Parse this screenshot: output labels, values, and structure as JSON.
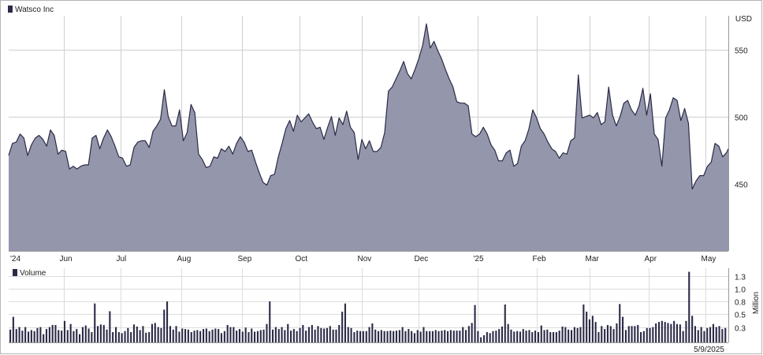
{
  "chart_data": [
    {
      "type": "area",
      "legend": "Watsco Inc",
      "unit_label": "USD",
      "color_fill": "#9496ab",
      "color_line": "#2b2b48",
      "ylim": [
        400,
        575
      ],
      "y_ticks": [
        "450",
        "500",
        "550"
      ],
      "y_tick_values": [
        450,
        500,
        550
      ],
      "x_ticks": [
        "'24",
        "Jun",
        "Jul",
        "Aug",
        "Sep",
        "Oct",
        "Nov",
        "Dec",
        "'25",
        "Feb",
        "Mar",
        "Apr",
        "May"
      ],
      "x_tick_days": [
        0,
        29,
        59,
        91,
        123,
        153,
        186,
        216,
        247,
        278,
        306,
        337,
        367
      ],
      "points": [
        [
          0,
          471
        ],
        [
          2,
          480
        ],
        [
          4,
          481
        ],
        [
          6,
          487
        ],
        [
          8,
          484
        ],
        [
          10,
          471
        ],
        [
          12,
          479
        ],
        [
          14,
          484
        ],
        [
          16,
          486
        ],
        [
          18,
          483
        ],
        [
          20,
          478
        ],
        [
          22,
          490
        ],
        [
          24,
          486
        ],
        [
          26,
          472
        ],
        [
          28,
          475
        ],
        [
          30,
          474
        ],
        [
          32,
          461
        ],
        [
          34,
          463
        ],
        [
          36,
          461
        ],
        [
          38,
          463
        ],
        [
          40,
          464
        ],
        [
          42,
          464
        ],
        [
          44,
          484
        ],
        [
          46,
          486
        ],
        [
          48,
          476
        ],
        [
          50,
          484
        ],
        [
          52,
          490
        ],
        [
          54,
          485
        ],
        [
          56,
          478
        ],
        [
          58,
          470
        ],
        [
          60,
          469
        ],
        [
          62,
          463
        ],
        [
          64,
          464
        ],
        [
          66,
          477
        ],
        [
          68,
          481
        ],
        [
          70,
          482
        ],
        [
          72,
          482
        ],
        [
          74,
          477
        ],
        [
          76,
          489
        ],
        [
          78,
          493
        ],
        [
          80,
          498
        ],
        [
          82,
          520
        ],
        [
          84,
          500
        ],
        [
          86,
          493
        ],
        [
          88,
          493
        ],
        [
          90,
          505
        ],
        [
          92,
          482
        ],
        [
          94,
          488
        ],
        [
          96,
          509
        ],
        [
          98,
          503
        ],
        [
          100,
          472
        ],
        [
          102,
          468
        ],
        [
          104,
          462
        ],
        [
          106,
          463
        ],
        [
          108,
          470
        ],
        [
          110,
          469
        ],
        [
          112,
          476
        ],
        [
          114,
          474
        ],
        [
          116,
          478
        ],
        [
          118,
          472
        ],
        [
          120,
          480
        ],
        [
          122,
          485
        ],
        [
          124,
          481
        ],
        [
          126,
          474
        ],
        [
          128,
          475
        ],
        [
          130,
          466
        ],
        [
          132,
          458
        ],
        [
          134,
          451
        ],
        [
          136,
          449
        ],
        [
          138,
          456
        ],
        [
          140,
          457
        ],
        [
          142,
          470
        ],
        [
          144,
          480
        ],
        [
          146,
          491
        ],
        [
          148,
          497
        ],
        [
          150,
          489
        ],
        [
          152,
          501
        ],
        [
          154,
          496
        ],
        [
          156,
          499
        ],
        [
          158,
          502
        ],
        [
          160,
          496
        ],
        [
          162,
          491
        ],
        [
          164,
          492
        ],
        [
          166,
          483
        ],
        [
          168,
          492
        ],
        [
          170,
          500
        ],
        [
          172,
          486
        ],
        [
          174,
          499
        ],
        [
          176,
          494
        ],
        [
          178,
          504
        ],
        [
          180,
          492
        ],
        [
          182,
          488
        ],
        [
          184,
          468
        ],
        [
          186,
          483
        ],
        [
          188,
          476
        ],
        [
          190,
          482
        ],
        [
          192,
          474
        ],
        [
          194,
          474
        ],
        [
          196,
          477
        ],
        [
          198,
          488
        ],
        [
          200,
          519
        ],
        [
          202,
          522
        ],
        [
          204,
          528
        ],
        [
          206,
          534
        ],
        [
          208,
          541
        ],
        [
          210,
          532
        ],
        [
          212,
          528
        ],
        [
          214,
          535
        ],
        [
          216,
          543
        ],
        [
          218,
          553
        ],
        [
          220,
          569
        ],
        [
          222,
          551
        ],
        [
          224,
          556
        ],
        [
          226,
          549
        ],
        [
          228,
          543
        ],
        [
          230,
          535
        ],
        [
          232,
          528
        ],
        [
          234,
          522
        ],
        [
          236,
          511
        ],
        [
          238,
          510
        ],
        [
          240,
          510
        ],
        [
          242,
          508
        ],
        [
          244,
          487
        ],
        [
          246,
          485
        ],
        [
          248,
          487
        ],
        [
          250,
          492
        ],
        [
          252,
          487
        ],
        [
          254,
          479
        ],
        [
          256,
          475
        ],
        [
          258,
          467
        ],
        [
          260,
          467
        ],
        [
          262,
          473
        ],
        [
          264,
          475
        ],
        [
          266,
          463
        ],
        [
          268,
          465
        ],
        [
          270,
          478
        ],
        [
          272,
          482
        ],
        [
          274,
          491
        ],
        [
          276,
          505
        ],
        [
          278,
          499
        ],
        [
          280,
          491
        ],
        [
          282,
          487
        ],
        [
          284,
          481
        ],
        [
          286,
          476
        ],
        [
          288,
          474
        ],
        [
          290,
          469
        ],
        [
          292,
          473
        ],
        [
          294,
          472
        ],
        [
          296,
          482
        ],
        [
          298,
          484
        ],
        [
          300,
          531
        ],
        [
          302,
          499
        ],
        [
          304,
          500
        ],
        [
          306,
          501
        ],
        [
          308,
          499
        ],
        [
          310,
          503
        ],
        [
          312,
          494
        ],
        [
          314,
          496
        ],
        [
          316,
          522
        ],
        [
          318,
          501
        ],
        [
          320,
          493
        ],
        [
          322,
          500
        ],
        [
          324,
          510
        ],
        [
          326,
          512
        ],
        [
          328,
          505
        ],
        [
          330,
          501
        ],
        [
          332,
          508
        ],
        [
          334,
          521
        ],
        [
          336,
          501
        ],
        [
          338,
          517
        ],
        [
          340,
          487
        ],
        [
          342,
          483
        ],
        [
          344,
          463
        ],
        [
          346,
          499
        ],
        [
          348,
          505
        ],
        [
          350,
          514
        ],
        [
          352,
          512
        ],
        [
          354,
          497
        ],
        [
          356,
          506
        ],
        [
          358,
          495
        ],
        [
          360,
          446
        ],
        [
          362,
          452
        ],
        [
          364,
          456
        ],
        [
          366,
          456
        ],
        [
          368,
          463
        ],
        [
          370,
          466
        ],
        [
          372,
          480
        ],
        [
          374,
          478
        ],
        [
          376,
          470
        ],
        [
          378,
          473
        ],
        [
          379,
          476
        ]
      ]
    },
    {
      "type": "bar",
      "legend": "Volume",
      "unit_label": "Million",
      "color_bar": "#2b2b48",
      "ylim": [
        0,
        1.45
      ],
      "y_ticks": [
        "0.3",
        "0.5",
        "0.8",
        "1.0",
        "1.3"
      ],
      "y_tick_values": [
        0.3,
        0.55,
        0.8,
        1.05,
        1.3
      ],
      "date_label": "5/9/2025",
      "values": [
        0.25,
        0.5,
        0.26,
        0.3,
        0.23,
        0.3,
        0.21,
        0.24,
        0.22,
        0.28,
        0.3,
        0.16,
        0.26,
        0.3,
        0.34,
        0.34,
        0.24,
        0.23,
        0.42,
        0.24,
        0.36,
        0.22,
        0.26,
        0.16,
        0.3,
        0.33,
        0.27,
        0.2,
        0.76,
        0.32,
        0.35,
        0.34,
        0.25,
        0.61,
        0.2,
        0.3,
        0.2,
        0.18,
        0.22,
        0.28,
        0.2,
        0.35,
        0.31,
        0.24,
        0.32,
        0.19,
        0.2,
        0.36,
        0.38,
        0.3,
        0.28,
        0.64,
        0.8,
        0.32,
        0.25,
        0.32,
        0.21,
        0.27,
        0.26,
        0.25,
        0.2,
        0.23,
        0.24,
        0.22,
        0.26,
        0.27,
        0.22,
        0.25,
        0.27,
        0.26,
        0.18,
        0.22,
        0.34,
        0.3,
        0.3,
        0.23,
        0.26,
        0.21,
        0.29,
        0.2,
        0.27,
        0.21,
        0.22,
        0.24,
        0.25,
        0.36,
        0.8,
        0.25,
        0.3,
        0.26,
        0.3,
        0.24,
        0.36,
        0.23,
        0.26,
        0.22,
        0.28,
        0.34,
        0.23,
        0.3,
        0.34,
        0.25,
        0.32,
        0.28,
        0.27,
        0.28,
        0.32,
        0.25,
        0.25,
        0.34,
        0.6,
        0.76,
        0.3,
        0.28,
        0.2,
        0.23,
        0.22,
        0.22,
        0.22,
        0.3,
        0.37,
        0.25,
        0.22,
        0.24,
        0.22,
        0.22,
        0.23,
        0.22,
        0.23,
        0.24,
        0.3,
        0.22,
        0.26,
        0.22,
        0.18,
        0.24,
        0.21,
        0.3,
        0.22,
        0.22,
        0.22,
        0.24,
        0.22,
        0.23,
        0.24,
        0.22,
        0.24,
        0.23,
        0.23,
        0.23,
        0.3,
        0.24,
        0.32,
        0.38,
        0.73,
        0.22,
        0.1,
        0.14,
        0.2,
        0.18,
        0.22,
        0.23,
        0.26,
        0.31,
        0.74,
        0.36,
        0.25,
        0.21,
        0.22,
        0.21,
        0.26,
        0.23,
        0.24,
        0.2,
        0.23,
        0.2,
        0.33,
        0.24,
        0.25,
        0.2,
        0.2,
        0.2,
        0.23,
        0.31,
        0.3,
        0.25,
        0.24,
        0.3,
        0.28,
        0.3,
        0.74,
        0.6,
        0.45,
        0.52,
        0.4,
        0.2,
        0.32,
        0.26,
        0.34,
        0.32,
        0.26,
        0.37,
        0.75,
        0.5,
        0.24,
        0.32,
        0.32,
        0.32,
        0.34,
        0.2,
        0.22,
        0.28,
        0.28,
        0.3,
        0.37,
        0.4,
        0.42,
        0.4,
        0.38,
        0.36,
        0.42,
        0.36,
        0.35,
        0.22,
        0.42,
        1.38,
        0.52,
        0.32,
        0.24,
        0.3,
        0.22,
        0.28,
        0.3,
        0.36,
        0.3,
        0.32,
        0.26,
        0.28
      ]
    }
  ]
}
